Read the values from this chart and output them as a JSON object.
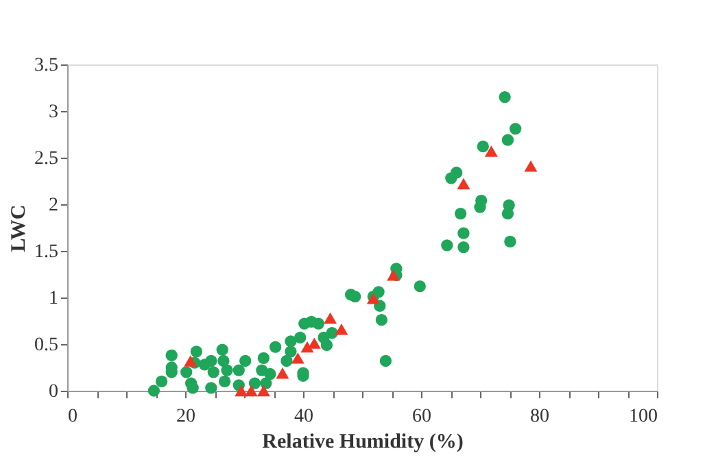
{
  "chart_data": {
    "type": "scatter",
    "xlabel": "Relative Humidity (%)",
    "ylabel": "LWC",
    "xlim": [
      0,
      100
    ],
    "ylim": [
      0,
      3.5
    ],
    "xticks": [
      0,
      {
        "value": 5,
        "label": null
      },
      {
        "value": 10,
        "label": null
      },
      {
        "value": 15,
        "label": null
      },
      20,
      {
        "value": 25,
        "label": null
      },
      {
        "value": 30,
        "label": null
      },
      {
        "value": 35,
        "label": null
      },
      40,
      {
        "value": 45,
        "label": null
      },
      {
        "value": 50,
        "label": null
      },
      {
        "value": 55,
        "label": null
      },
      60,
      {
        "value": 65,
        "label": null
      },
      {
        "value": 70,
        "label": null
      },
      {
        "value": 75,
        "label": null
      },
      80,
      {
        "value": 85,
        "label": null
      },
      {
        "value": 90,
        "label": null
      },
      {
        "value": 95,
        "label": null
      },
      100
    ],
    "yticks": [
      0,
      0.5,
      1,
      1.5,
      2,
      2.5,
      3,
      3.5
    ],
    "grid": false,
    "legend": false,
    "series": [
      {
        "color": "#1fa65a",
        "marker": "circle",
        "x": [
          14.7,
          16,
          17.7,
          17.7,
          17.7,
          20.2,
          21,
          21.3,
          21.9,
          21.6,
          23.3,
          24.4,
          24.4,
          24.8,
          26.3,
          26.5,
          26.7,
          27.1,
          29.1,
          29.1,
          30.2,
          31.8,
          33,
          33.3,
          33.7,
          34.4,
          35.3,
          37.2,
          37.9,
          40,
          40,
          40.2,
          41.4,
          42.6,
          43.5,
          44,
          44.9,
          37.9,
          39.5,
          48.1,
          48.8,
          51.9,
          52.8,
          53,
          53.3,
          54,
          55.8,
          55.8,
          59.8,
          64.4,
          65.1,
          66,
          66.7,
          67.2,
          67.2,
          70.2,
          70,
          70.5,
          74.9,
          74.7,
          75.1,
          74.2,
          74.7,
          76
        ],
        "values": [
          0,
          0.1,
          0.38,
          0.2,
          0.25,
          0.2,
          0.08,
          0.03,
          0.42,
          0.3,
          0.28,
          0.32,
          0.03,
          0.2,
          0.44,
          0.32,
          0.1,
          0.22,
          0.22,
          0.06,
          0.32,
          0.08,
          0.22,
          0.35,
          0.08,
          0.18,
          0.47,
          0.32,
          0.53,
          0.19,
          0.16,
          0.72,
          0.74,
          0.72,
          0.57,
          0.49,
          0.62,
          0.42,
          0.57,
          1.03,
          1.01,
          1.01,
          1.06,
          0.91,
          0.76,
          0.32,
          1.31,
          1.24,
          1.12,
          1.56,
          2.28,
          2.34,
          1.9,
          1.69,
          1.54,
          2.04,
          1.97,
          2.62,
          1.99,
          1.9,
          1.6,
          3.15,
          2.69,
          2.81
        ]
      },
      {
        "color": "#ee3524",
        "marker": "triangle",
        "x": [
          20.9,
          29.5,
          31.2,
          33.3,
          36.5,
          39.1,
          40.7,
          41.9,
          44.6,
          46.5,
          51.9,
          55.3,
          67.2,
          71.9,
          78.6
        ],
        "values": [
          0.32,
          0,
          0,
          0,
          0.19,
          0.35,
          0.47,
          0.51,
          0.78,
          0.66,
          0.99,
          1.24,
          2.22,
          2.57,
          2.41
        ]
      }
    ]
  }
}
